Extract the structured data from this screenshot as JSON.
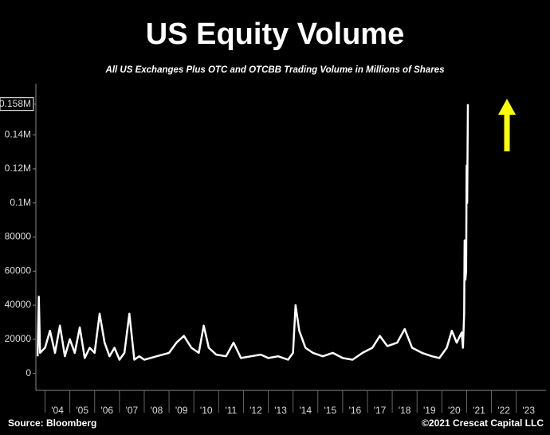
{
  "chart_data": {
    "type": "line",
    "title": "US Equity Volume",
    "subtitle": "All US Exchanges Plus OTC and OTCBB Trading Volume in Millions of Shares",
    "source": "Source: Bloomberg",
    "copyright": "©2021 Crescat Capital LLC",
    "color": "#ffffff",
    "x": [
      2003.7,
      2003.75,
      2003.8,
      2004.0,
      2004.2,
      2004.4,
      2004.6,
      2004.8,
      2005.0,
      2005.2,
      2005.4,
      2005.6,
      2005.8,
      2006.0,
      2006.2,
      2006.4,
      2006.6,
      2006.8,
      2007.0,
      2007.2,
      2007.4,
      2007.6,
      2007.8,
      2008.0,
      2008.5,
      2009.0,
      2009.3,
      2009.6,
      2009.9,
      2010.2,
      2010.4,
      2010.6,
      2010.9,
      2011.3,
      2011.6,
      2011.9,
      2012.3,
      2012.7,
      2013.0,
      2013.4,
      2013.8,
      2014.0,
      2014.1,
      2014.25,
      2014.5,
      2014.8,
      2015.2,
      2015.6,
      2016.0,
      2016.4,
      2016.8,
      2017.2,
      2017.5,
      2017.8,
      2018.2,
      2018.5,
      2018.8,
      2019.2,
      2019.6,
      2019.9,
      2020.2,
      2020.4,
      2020.6,
      2020.8,
      2020.85,
      2020.9,
      2020.92,
      2020.95,
      2020.98,
      2021.0,
      2021.02,
      2021.05
    ],
    "values": [
      10000,
      45000,
      12000,
      15000,
      25000,
      12000,
      28000,
      10000,
      20000,
      12000,
      27000,
      9000,
      15000,
      12000,
      35000,
      18000,
      10000,
      15000,
      8000,
      12000,
      35000,
      8000,
      10000,
      8000,
      10000,
      12000,
      18000,
      22000,
      15000,
      12000,
      28000,
      15000,
      11000,
      10000,
      18000,
      9000,
      10000,
      11000,
      9000,
      10000,
      8000,
      12000,
      40000,
      25000,
      15000,
      12000,
      10000,
      12000,
      9000,
      8000,
      12000,
      15000,
      22000,
      16000,
      18000,
      26000,
      15000,
      12000,
      10000,
      9000,
      15000,
      25000,
      18000,
      24000,
      15000,
      35000,
      78000,
      55000,
      60000,
      122000,
      100000,
      158000
    ],
    "xlim": [
      2003.63,
      2024.2
    ],
    "xticks": [
      {
        "value": 2004.5,
        "label": "'04"
      },
      {
        "value": 2005.5,
        "label": "'05"
      },
      {
        "value": 2006.5,
        "label": "'06"
      },
      {
        "value": 2007.5,
        "label": "'07"
      },
      {
        "value": 2008.5,
        "label": "'08"
      },
      {
        "value": 2009.5,
        "label": "'09"
      },
      {
        "value": 2010.5,
        "label": "'10"
      },
      {
        "value": 2011.5,
        "label": "'11"
      },
      {
        "value": 2012.5,
        "label": "'12"
      },
      {
        "value": 2013.5,
        "label": "'13"
      },
      {
        "value": 2014.5,
        "label": "'14"
      },
      {
        "value": 2015.5,
        "label": "'15"
      },
      {
        "value": 2016.5,
        "label": "'16"
      },
      {
        "value": 2017.5,
        "label": "'17"
      },
      {
        "value": 2018.5,
        "label": "'18"
      },
      {
        "value": 2019.5,
        "label": "'19"
      },
      {
        "value": 2020.5,
        "label": "'20"
      },
      {
        "value": 2021.5,
        "label": "'21"
      },
      {
        "value": 2022.5,
        "label": "'22"
      },
      {
        "value": 2023.5,
        "label": "'23"
      }
    ],
    "ylim": [
      -10000,
      170000
    ],
    "yticks": [
      0,
      20000,
      40000,
      60000,
      80000,
      {
        "value": 100000,
        "label": "0.1M"
      },
      {
        "value": 120000,
        "label": "0.12M"
      },
      {
        "value": 140000,
        "label": "0.14M"
      },
      {
        "value": 158000,
        "label": "0.158M"
      }
    ]
  }
}
